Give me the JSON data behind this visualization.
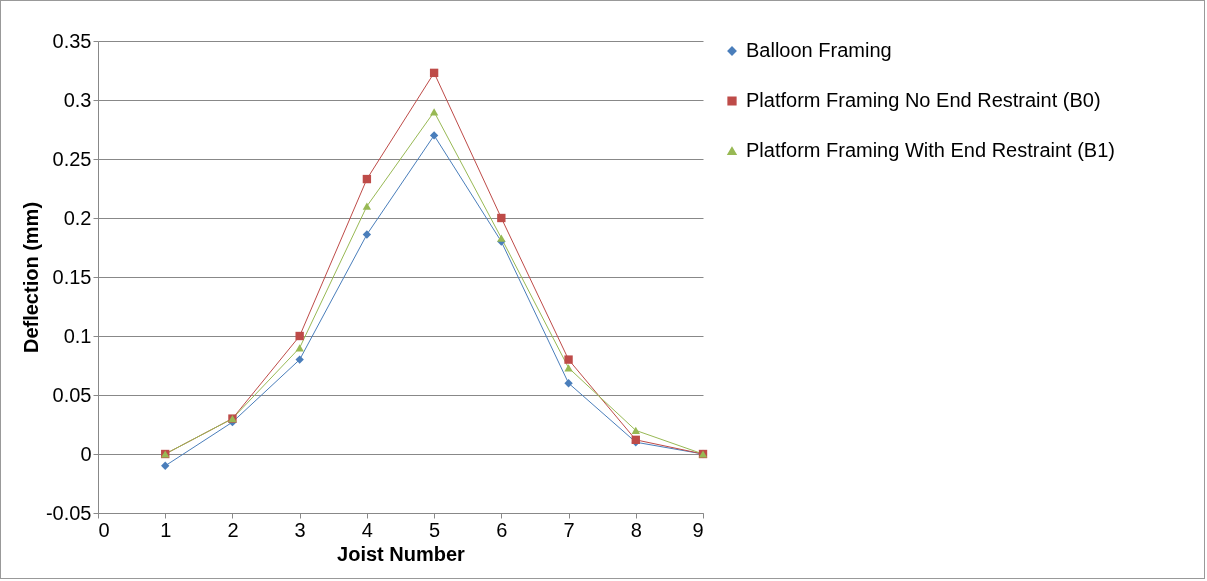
{
  "chart_data": {
    "type": "line",
    "xlabel": "Joist Number",
    "ylabel": "Deflection (mm)",
    "x": [
      1,
      2,
      3,
      4,
      5,
      6,
      7,
      8,
      9
    ],
    "xlim": [
      0,
      9
    ],
    "xticks": [
      0,
      1,
      2,
      3,
      4,
      5,
      6,
      7,
      8,
      9
    ],
    "ylim": [
      -0.05,
      0.35
    ],
    "yticks": [
      -0.05,
      0,
      0.05,
      0.1,
      0.15,
      0.2,
      0.25,
      0.3,
      0.35
    ],
    "grid": "y",
    "legend": "right",
    "line_style": "solid",
    "series": [
      {
        "name": "Balloon Framing",
        "color": "#4a7ebb",
        "marker": "diamond",
        "values": [
          -0.01,
          0.027,
          0.08,
          0.186,
          0.27,
          0.18,
          0.06,
          0.01,
          0
        ]
      },
      {
        "name": "Platform Framing No End Restraint (B0)",
        "color": "#be4b48",
        "marker": "square",
        "values": [
          0,
          0.03,
          0.1,
          0.233,
          0.323,
          0.2,
          0.08,
          0.012,
          0
        ]
      },
      {
        "name": "Platform Framing With End Restraint (B1)",
        "color": "#98b954",
        "marker": "triangle",
        "values": [
          0,
          0.03,
          0.09,
          0.21,
          0.29,
          0.183,
          0.073,
          0.02,
          0
        ]
      }
    ]
  }
}
